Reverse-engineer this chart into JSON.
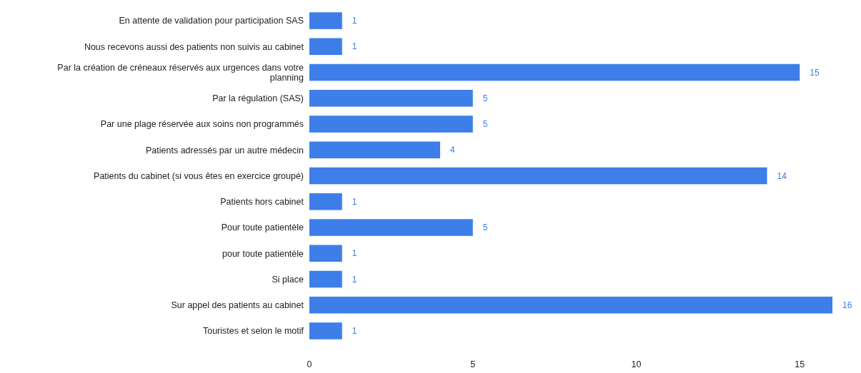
{
  "chart_data": {
    "type": "bar",
    "orientation": "horizontal",
    "categories": [
      "En attente de validation pour participation SAS",
      "Nous recevons aussi des patients non suivis au cabinet",
      "Par la création de créneaux réservés aux urgences dans votre planning",
      "Par la régulation (SAS)",
      "Par une plage réservée aux soins non programmés",
      "Patients adressés par un autre médecin",
      "Patients du cabinet (si vous êtes en exercice groupé)",
      "Patients hors cabinet",
      "Pour toute patientèle",
      "pour toute patientèle",
      "Si place",
      "Sur appel des patients au cabinet",
      "Touristes et selon le motif"
    ],
    "values": [
      1,
      1,
      15,
      5,
      5,
      4,
      14,
      1,
      5,
      1,
      1,
      16,
      1
    ],
    "color": "#3d7ee8",
    "xlim": [
      0,
      16
    ],
    "xticks": [
      0,
      5,
      10,
      15
    ],
    "data_labels": true,
    "grid": false
  }
}
